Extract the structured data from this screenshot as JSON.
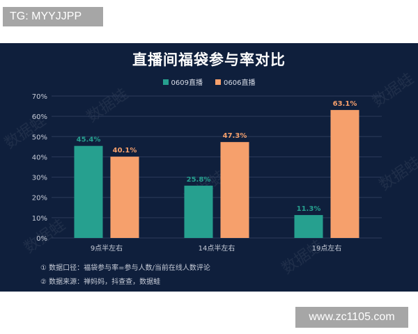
{
  "header_badge": "TG: MYYJJPP",
  "footer_badge": "www.zc1105.com",
  "watermark_text": "数据蛙",
  "colors": {
    "panel_bg": "#0f1f3c",
    "series_0609": "#26a08f",
    "series_0606": "#f6a06c",
    "grid": "#2c3b5a"
  },
  "notes": [
    "① 数据口径：福袋参与率=参与人数/当前在线人数评论",
    "② 数据来源：禅妈妈，抖查查，数据蛙"
  ],
  "chart_data": {
    "type": "bar",
    "title": "直播间福袋参与率对比",
    "categories": [
      "9点半左右",
      "14点半左右",
      "19点左右"
    ],
    "series": [
      {
        "name": "0609直播",
        "values": [
          45.4,
          25.8,
          11.3
        ],
        "labels": [
          "45.4%",
          "25.8%",
          "11.3%"
        ]
      },
      {
        "name": "0606直播",
        "values": [
          40.1,
          47.3,
          63.1
        ],
        "labels": [
          "40.1%",
          "47.3%",
          "63.1%"
        ]
      }
    ],
    "ylim": [
      0,
      70
    ],
    "yticks": [
      "0%",
      "10%",
      "20%",
      "30%",
      "40%",
      "50%",
      "60%",
      "70%"
    ],
    "grid": true,
    "legend": "top-center"
  }
}
